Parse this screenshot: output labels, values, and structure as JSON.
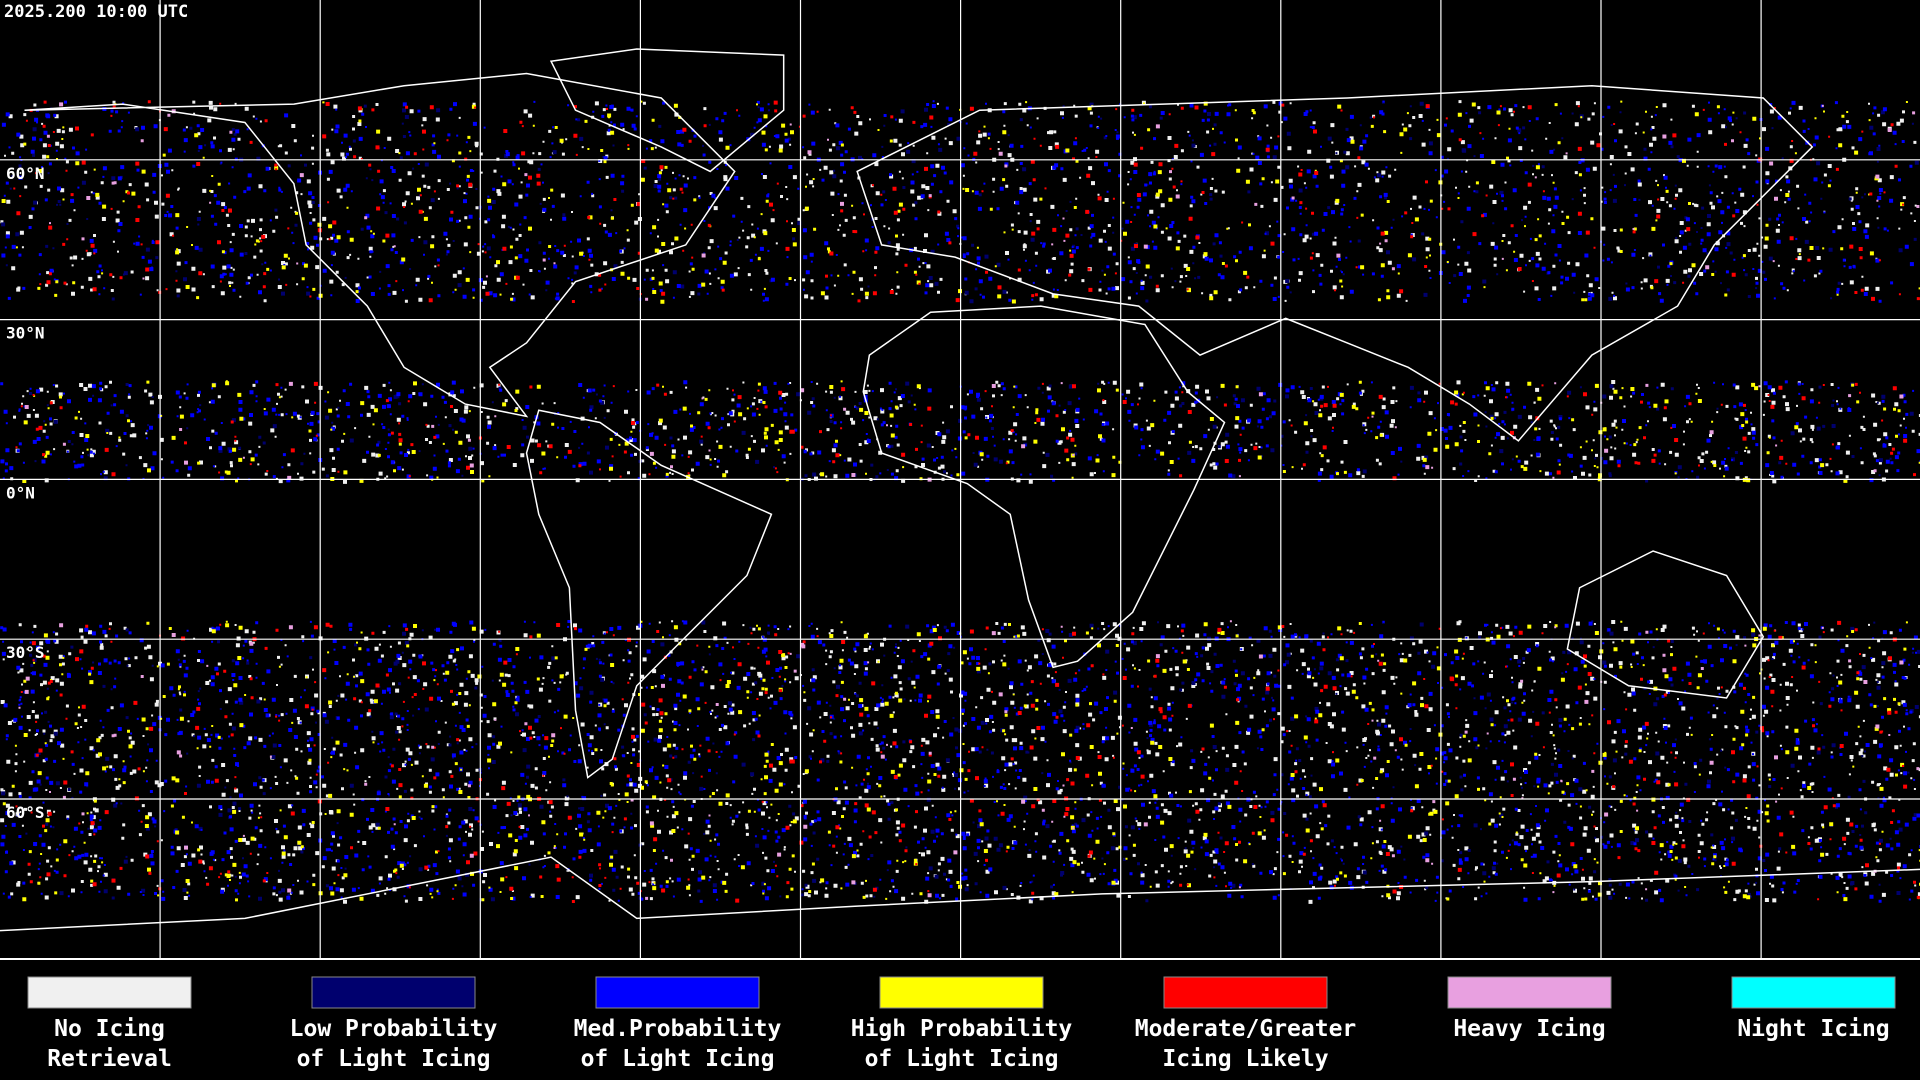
{
  "timestamp": "2025.200 10:00 UTC",
  "latitude_labels": [
    "60°N",
    "30°N",
    "0°N",
    "30°S",
    "60°S"
  ],
  "legend": [
    {
      "lines": [
        "No Icing",
        "Retrieval"
      ],
      "color": "#f0f0f0"
    },
    {
      "lines": [
        "Low Probability",
        "of Light Icing"
      ],
      "color": "#00006e"
    },
    {
      "lines": [
        "Med.Probability",
        "of Light Icing"
      ],
      "color": "#0000ff"
    },
    {
      "lines": [
        "High Probability",
        "of Light Icing"
      ],
      "color": "#ffff00"
    },
    {
      "lines": [
        "Moderate/Greater",
        "Icing Likely"
      ],
      "color": "#ff0000"
    },
    {
      "lines": [
        "Heavy Icing"
      ],
      "color": "#e8a0e0"
    },
    {
      "lines": [
        "Night Icing"
      ],
      "color": "#00ffff"
    }
  ]
}
